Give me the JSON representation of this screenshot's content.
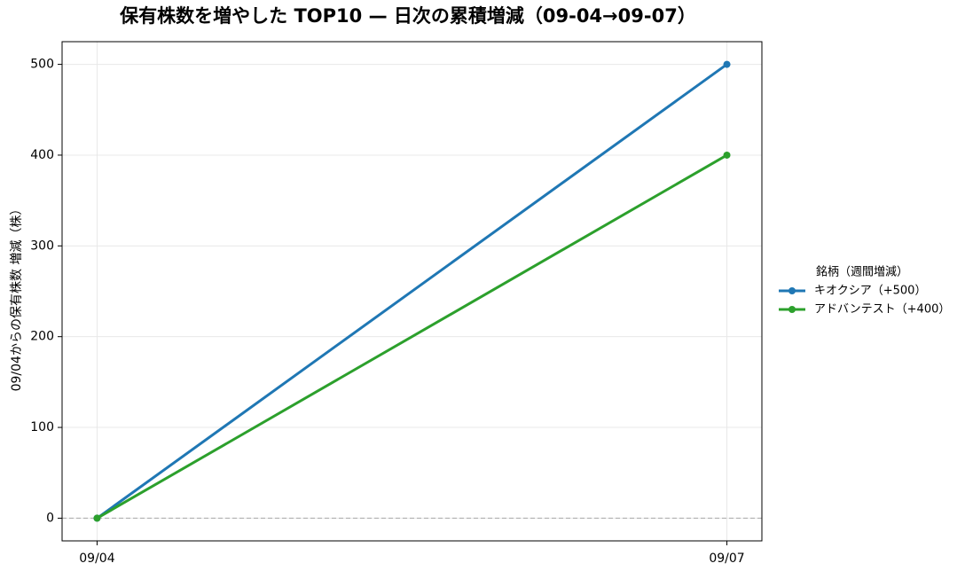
{
  "chart_data": {
    "type": "line",
    "title": "保有株数を増やした TOP10 — 日次の累積増減（09-04→09-07）",
    "y_label": "09/04からの保有株数 増減（株）",
    "categories": [
      "09/04",
      "09/07"
    ],
    "series": [
      {
        "name": "キオクシア（+500）",
        "color": "#1f77b4",
        "values": [
          0,
          500
        ]
      },
      {
        "name": "アドバンテスト（+400）",
        "color": "#2ca02c",
        "values": [
          0,
          400
        ]
      }
    ],
    "legend_title": "銘柄（週間増減）",
    "legend_position": "right",
    "ylim": [
      -25,
      525
    ],
    "yticks": [
      0,
      100,
      200,
      300,
      400,
      500
    ],
    "hline": 0,
    "grid": true
  }
}
